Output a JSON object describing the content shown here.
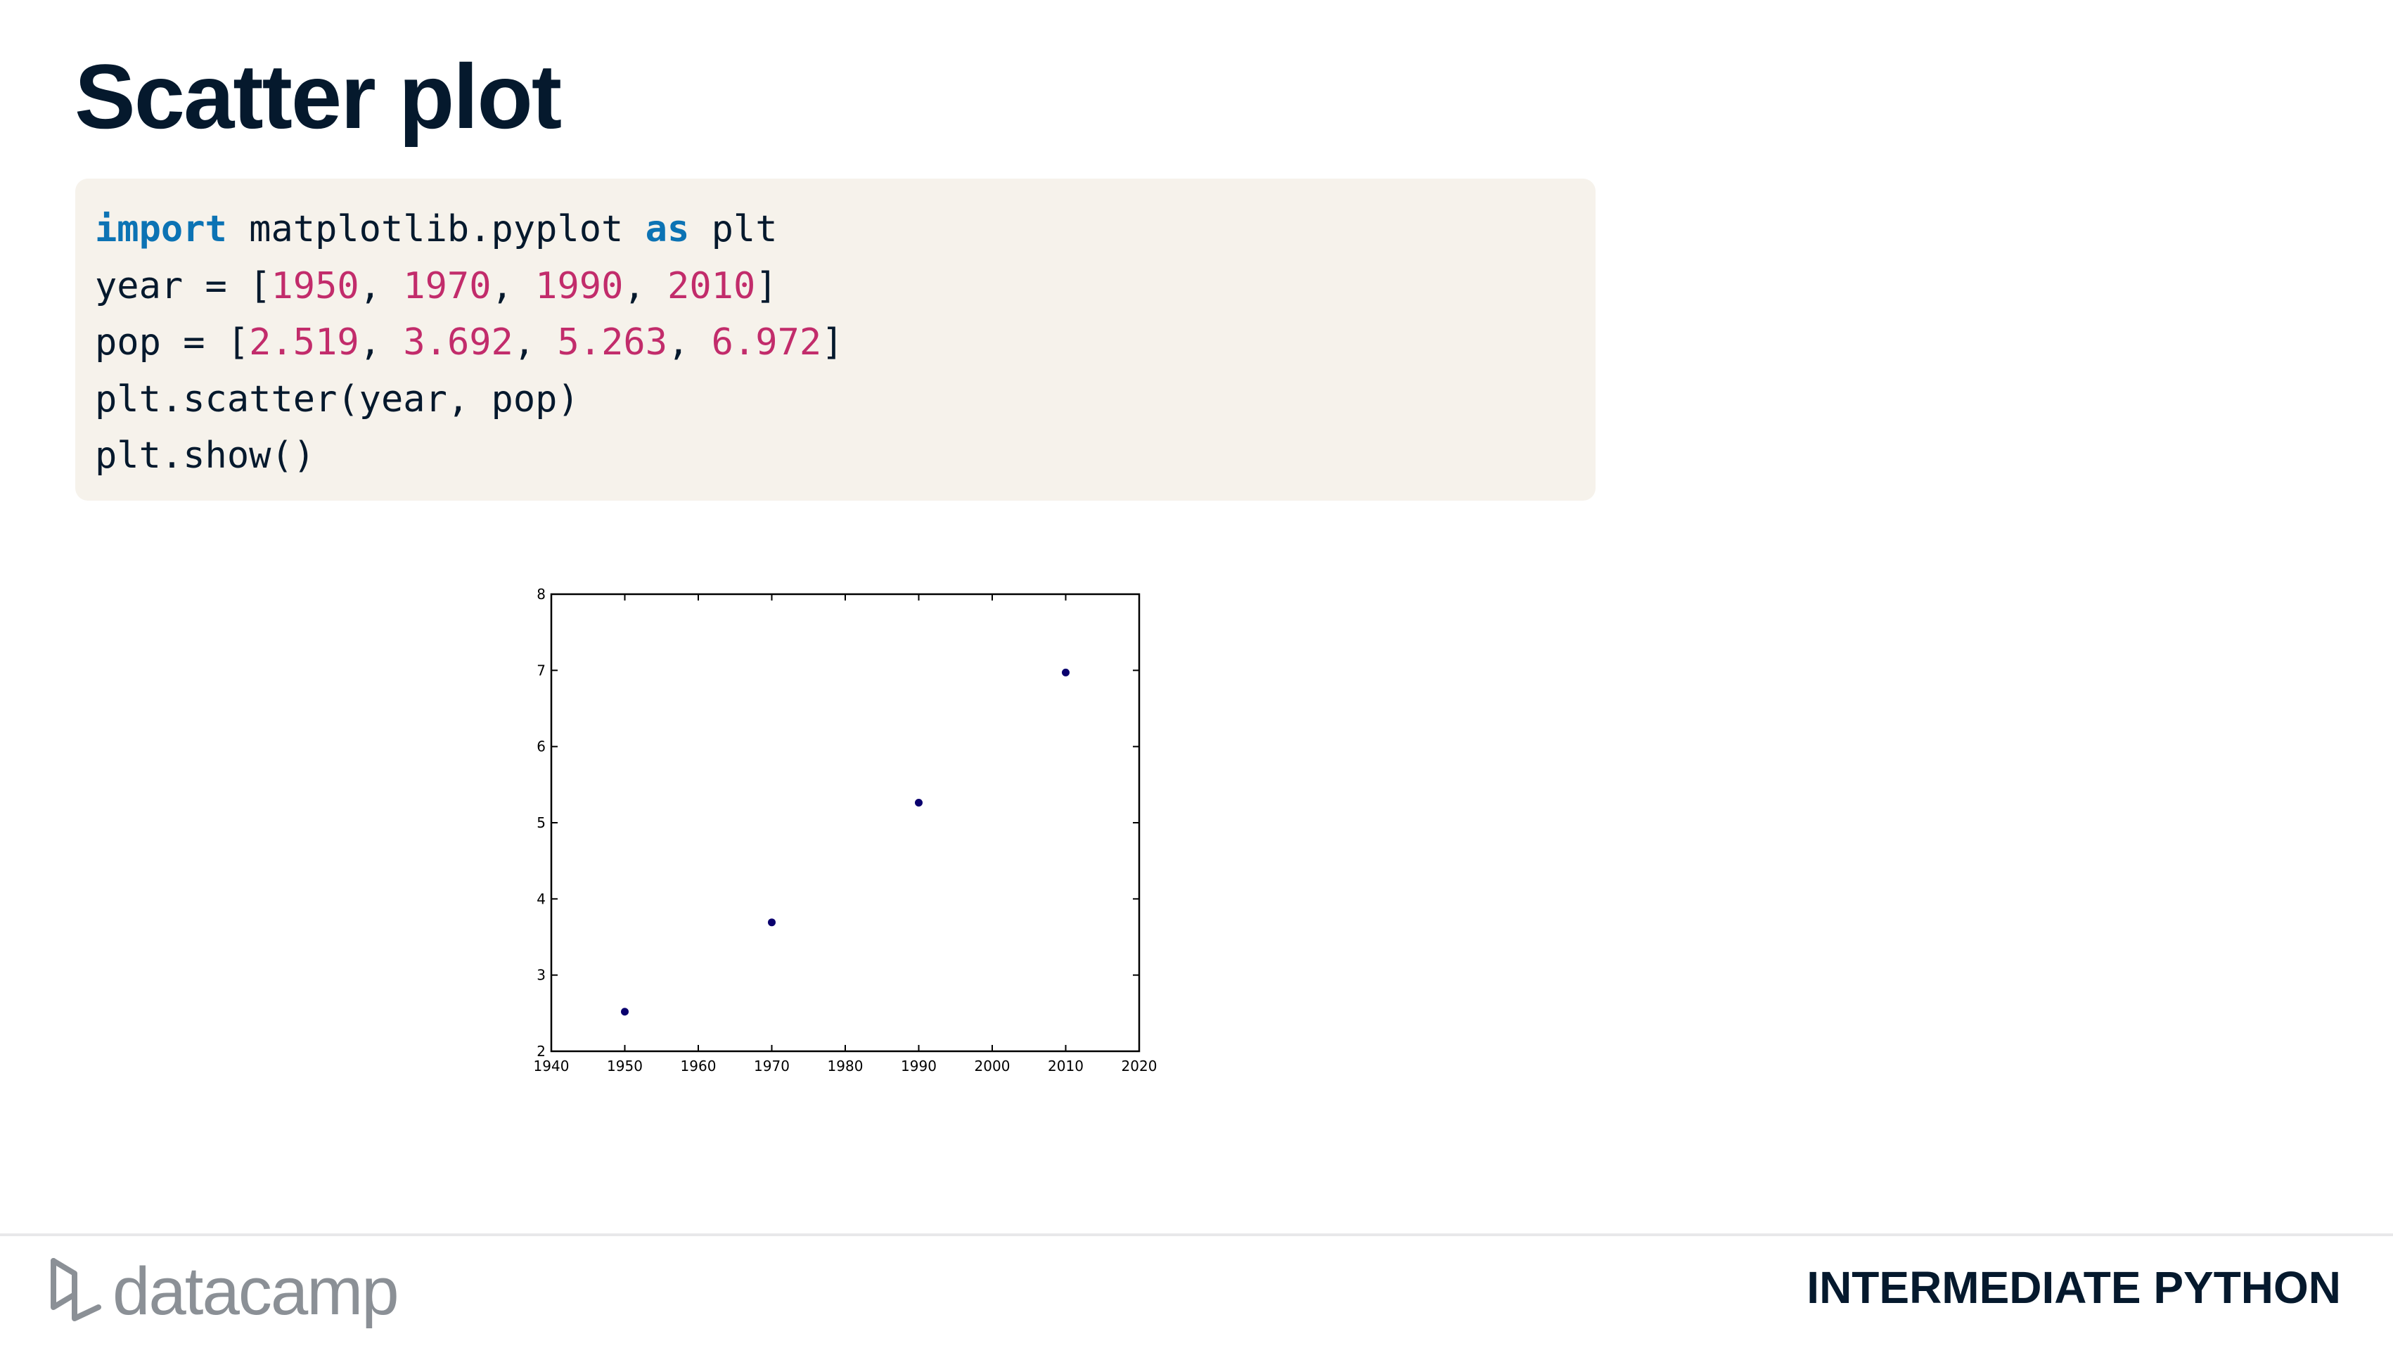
{
  "slide": {
    "title": "Scatter plot"
  },
  "code": {
    "line1": {
      "kw1": "import",
      "mid": " matplotlib.pyplot ",
      "kw2": "as",
      "end": " plt"
    },
    "line2": {
      "pre": "year = [",
      "n1": "1950",
      "s1": ", ",
      "n2": "1970",
      "s2": ", ",
      "n3": "1990",
      "s3": ", ",
      "n4": "2010",
      "post": "]"
    },
    "line3": {
      "pre": "pop = [",
      "n1": "2.519",
      "s1": ", ",
      "n2": "3.692",
      "s2": ", ",
      "n3": "5.263",
      "s3": ", ",
      "n4": "6.972",
      "post": "]"
    },
    "line4": "plt.scatter(year, pop)",
    "line5": "plt.show()"
  },
  "chart_data": {
    "type": "scatter",
    "title": "",
    "xlabel": "",
    "ylabel": "",
    "xlim": [
      1940,
      2020
    ],
    "ylim": [
      2,
      8
    ],
    "xticks": [
      "1940",
      "1950",
      "1960",
      "1970",
      "1980",
      "1990",
      "2000",
      "2010",
      "2020"
    ],
    "yticks": [
      "2",
      "3",
      "4",
      "5",
      "6",
      "7",
      "8"
    ],
    "grid": false,
    "point_color": "#0a006e",
    "series": [
      {
        "x": [
          1950,
          1970,
          1990,
          2010
        ],
        "y": [
          2.519,
          3.692,
          5.263,
          6.972
        ]
      }
    ]
  },
  "footer": {
    "brand": "datacamp",
    "course": "INTERMEDIATE PYTHON"
  },
  "colors": {
    "keyword": "#0c73b4",
    "number": "#c22c6b",
    "code_bg": "#f6f2eb",
    "title": "#05192d"
  }
}
